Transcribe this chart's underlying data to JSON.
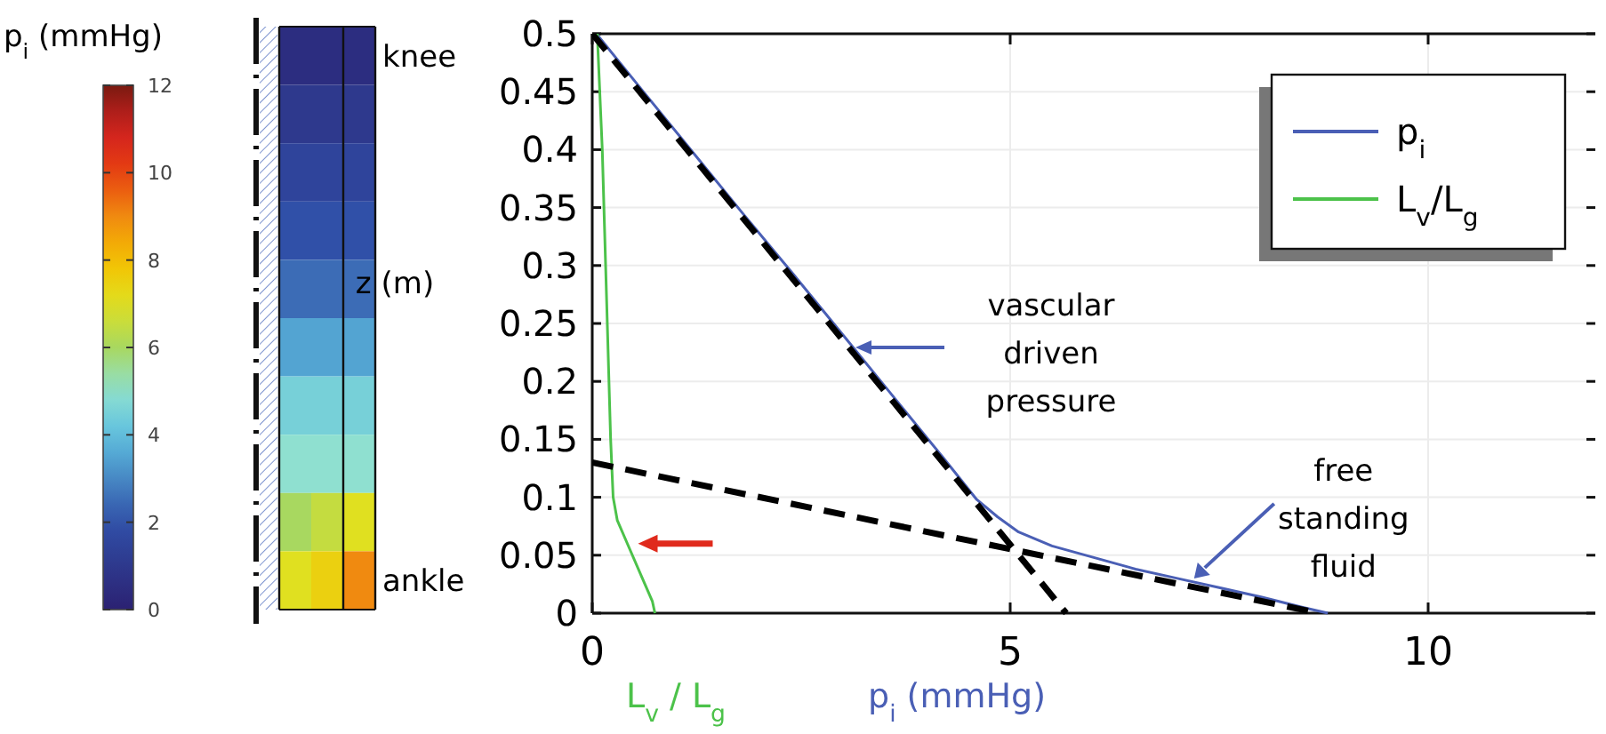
{
  "chart_data": [
    {
      "type": "heatmap",
      "clabel": "p$_{i}$ (mmHg)",
      "clim": [
        0,
        12
      ],
      "cticks": [
        0,
        2,
        4,
        6,
        8,
        10,
        12
      ],
      "categories": [
        null,
        null,
        null
      ],
      "y_categories": [
        "knee",
        null,
        null,
        null,
        null,
        null,
        null,
        null,
        null,
        "ankle"
      ],
      "cells": [
        [
          0.5,
          0.5,
          0.5
        ],
        [
          1,
          1,
          1
        ],
        [
          1.5,
          1.5,
          1.5
        ],
        [
          2,
          2,
          2
        ],
        [
          2.5,
          2.5,
          2.5
        ],
        [
          3.5,
          3.5,
          3.5
        ],
        [
          4.5,
          4.5,
          4.5
        ],
        [
          5,
          5,
          5
        ],
        [
          6,
          6.5,
          7
        ],
        [
          7,
          7.5,
          9
        ]
      ]
    },
    {
      "type": "line",
      "ylabel": "z (m)",
      "xlabel": "p$_{i}$ (mmHg)",
      "xlim": [
        0,
        12
      ],
      "xticks": [
        0,
        5,
        10
      ],
      "ylim": [
        0,
        0.5
      ],
      "yticks": [
        0,
        0.05,
        0.1,
        0.15,
        0.2,
        0.25,
        0.3,
        0.35,
        0.4,
        0.45,
        0.5
      ],
      "grid": true,
      "legend": "top right",
      "series": [
        {
          "name": "p$_{i}$",
          "color": "#4a5fb5",
          "x": [
            0.05,
            0.6,
            1.2,
            1.8,
            2.4,
            3.0,
            3.6,
            4.2,
            4.6,
            4.85,
            5.1,
            5.5,
            6,
            6.5,
            7,
            7.5,
            8,
            8.5,
            8.8
          ],
          "values": [
            0.5,
            0.451,
            0.398,
            0.345,
            0.293,
            0.24,
            0.187,
            0.134,
            0.098,
            0.083,
            0.07,
            0.058,
            0.048,
            0.038,
            0.03,
            0.022,
            0.014,
            0.005,
            0
          ]
        },
        {
          "name": "L$_{v}$/L$_{g}$",
          "color": "#4cc24a",
          "x": [
            0.06,
            0.12,
            0.18,
            0.22,
            0.25,
            0.3,
            0.42,
            0.6,
            0.72,
            0.75
          ],
          "values": [
            0.5,
            0.4,
            0.25,
            0.15,
            0.1,
            0.08,
            0.06,
            0.03,
            0.01,
            0
          ]
        },
        {
          "color": "#000000",
          "line_style": "dashed",
          "x": [
            0,
            5.67
          ],
          "values": [
            0.5,
            0
          ]
        },
        {
          "color": "#000000",
          "line_style": "dashed",
          "x": [
            0,
            8.7
          ],
          "values": [
            0.13,
            0
          ]
        }
      ],
      "annotations": [
        "vascular driven pressure",
        {
          "text": "free standing fluid",
          "x": 7.2,
          "y": 0.03
        },
        "L$_{v}$ / L$_{g}$"
      ]
    }
  ]
}
